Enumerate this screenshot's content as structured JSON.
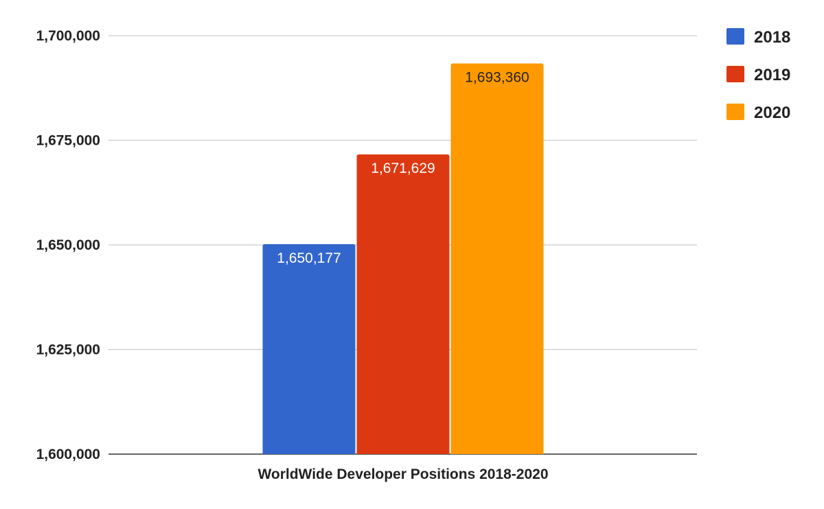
{
  "chart_data": {
    "type": "bar",
    "categories": [
      "WorldWide Developer Positions 2018-2020"
    ],
    "series": [
      {
        "name": "2018",
        "values": [
          1650177
        ],
        "color": "#3366CC",
        "label": "1,650,177",
        "label_color": "#ffffff"
      },
      {
        "name": "2019",
        "values": [
          1671629
        ],
        "color": "#DC3912",
        "label": "1,671,629",
        "label_color": "#ffffff"
      },
      {
        "name": "2020",
        "values": [
          1693360
        ],
        "color": "#FF9900",
        "label": "1,693,360",
        "label_color": "#222222"
      }
    ],
    "ylim": [
      1600000,
      1700000
    ],
    "yticks": [
      1600000,
      1625000,
      1650000,
      1675000,
      1700000
    ],
    "ytick_labels": [
      "1,600,000",
      "1,625,000",
      "1,650,000",
      "1,675,000",
      "1,700,000"
    ],
    "grid": true,
    "legend": "right"
  }
}
